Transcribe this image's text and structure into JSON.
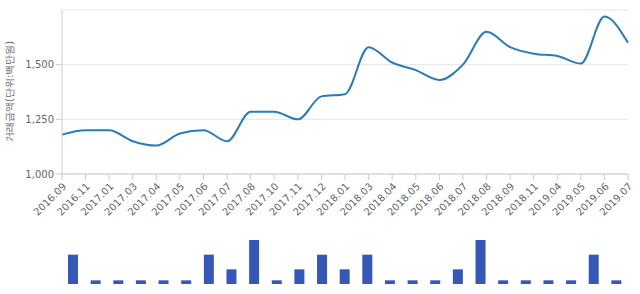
{
  "chart_data": [
    {
      "type": "line",
      "ylabel": "거래금액(단위:백만원)",
      "categories": [
        "2016.09",
        "2016.11",
        "2017.01",
        "2017.03",
        "2017.04",
        "2017.05",
        "2017.06",
        "2017.07",
        "2017.08",
        "2017.10",
        "2017.11",
        "2017.12",
        "2018.01",
        "2018.03",
        "2018.04",
        "2018.05",
        "2018.06",
        "2018.07",
        "2018.08",
        "2018.09",
        "2018.11",
        "2019.04",
        "2019.05",
        "2019.06",
        "2019.07"
      ],
      "values": [
        1180,
        1200,
        1200,
        1150,
        1130,
        1185,
        1200,
        1150,
        1285,
        1285,
        1250,
        1355,
        1365,
        1580,
        1510,
        1475,
        1430,
        1500,
        1650,
        1580,
        1550,
        1540,
        1505,
        1720,
        1600
      ],
      "color": "#2b7bb9",
      "ylim": [
        1000,
        1750
      ],
      "yticks": [
        {
          "value": 1000,
          "label": "1,000"
        },
        {
          "value": 1250,
          "label": "1,250"
        },
        {
          "value": 1500,
          "label": "1,500"
        }
      ],
      "grid": true
    },
    {
      "type": "bar",
      "categories": [
        "2016.09",
        "2016.11",
        "2017.01",
        "2017.03",
        "2017.04",
        "2017.05",
        "2017.06",
        "2017.07",
        "2017.08",
        "2017.10",
        "2017.11",
        "2017.12",
        "2018.01",
        "2018.03",
        "2018.04",
        "2018.05",
        "2018.06",
        "2018.07",
        "2018.08",
        "2018.09",
        "2018.11",
        "2019.04",
        "2019.05",
        "2019.06",
        "2019.07"
      ],
      "values": [
        2,
        0.25,
        0.25,
        0.25,
        0.25,
        0.25,
        2,
        1,
        3,
        0.25,
        1,
        2,
        1,
        2,
        0.25,
        0.25,
        0.25,
        1,
        3,
        0.25,
        0.25,
        0.25,
        0.25,
        2,
        0.25
      ],
      "color": "#3558b7",
      "ylim": [
        0,
        3
      ],
      "tick_labels": false
    }
  ]
}
